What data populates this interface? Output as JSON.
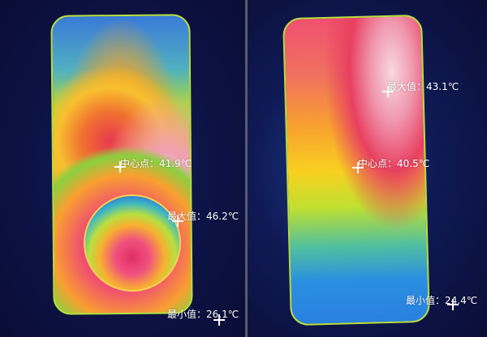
{
  "left_image": {
    "center": {
      "label": "中心点：",
      "value": "41.9℃"
    },
    "max": {
      "label": "最大值：",
      "value": "46.2℃"
    },
    "min": {
      "label": "最小值：",
      "value": "26.1℃"
    }
  },
  "right_image": {
    "max": {
      "label": "最大值：",
      "value": "43.1℃"
    },
    "center": {
      "label": "中心点：",
      "value": "40.5℃"
    },
    "min": {
      "label": "最小值：",
      "value": "24.4℃"
    }
  }
}
